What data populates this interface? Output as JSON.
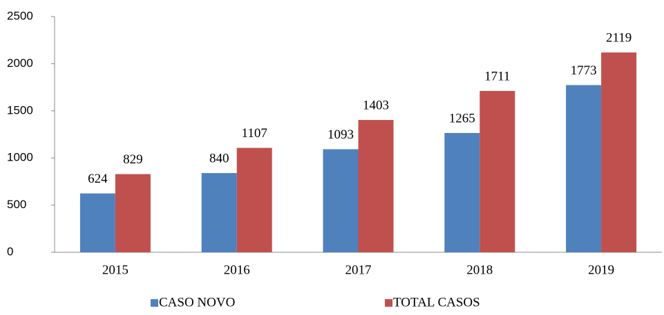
{
  "chart_data": {
    "type": "bar",
    "categories": [
      "2015",
      "2016",
      "2017",
      "2018",
      "2019"
    ],
    "series": [
      {
        "name": "CASO NOVO",
        "color": "#4f81bd",
        "values": [
          624,
          840,
          1093,
          1265,
          1773
        ]
      },
      {
        "name": "TOTAL CASOS",
        "color": "#c0504d",
        "values": [
          829,
          1107,
          1403,
          1711,
          2119
        ]
      }
    ],
    "ylim": [
      0,
      2500
    ],
    "yticks": [
      0,
      500,
      1000,
      1500,
      2000,
      2500
    ],
    "grid": false,
    "legend": "bottom"
  }
}
